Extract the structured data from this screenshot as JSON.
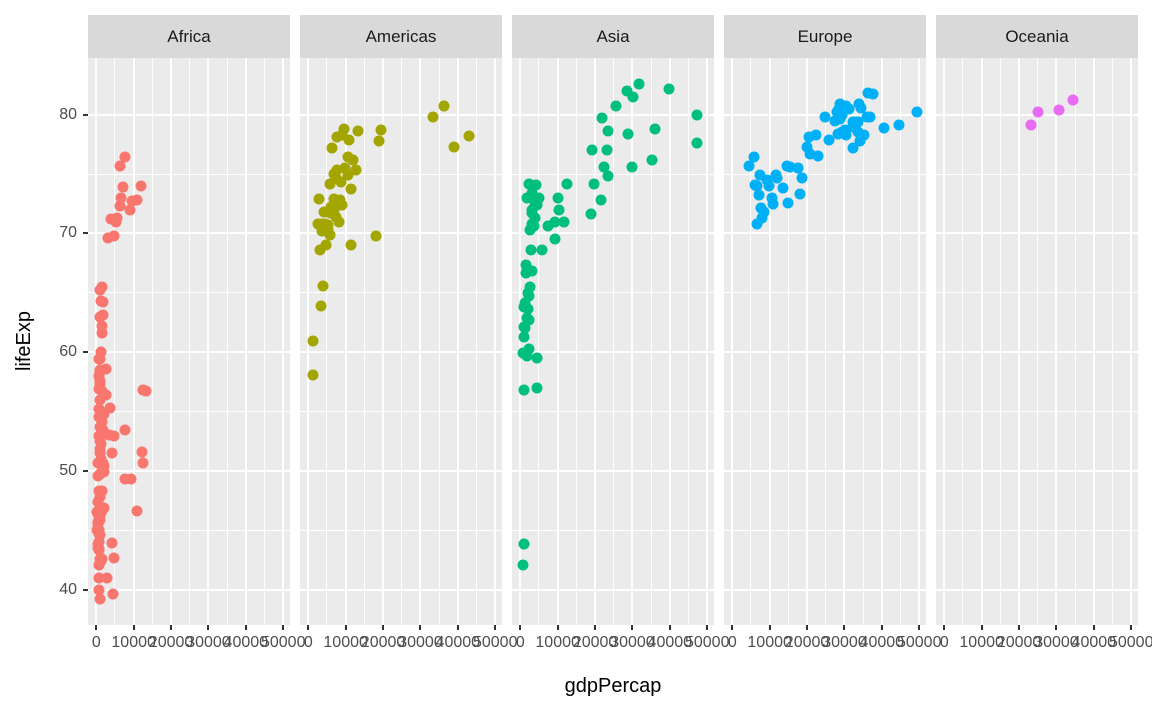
{
  "chart_data": {
    "type": "scatter",
    "title": "",
    "xlabel": "gdpPercap",
    "ylabel": "lifeExp",
    "legend": "none",
    "grid": "on",
    "xlim": [
      -2215,
      51813
    ],
    "ylim": [
      37.02,
      84.77
    ],
    "x_ticks": {
      "values": [
        0,
        10000,
        20000,
        30000,
        40000,
        50000
      ],
      "labels": [
        "0",
        "10000",
        "20000",
        "30000",
        "40000",
        "50000"
      ]
    },
    "y_ticks": {
      "values": [
        40,
        50,
        60,
        70,
        80
      ],
      "labels": [
        "40",
        "50",
        "60",
        "70",
        "80"
      ]
    },
    "x_minor": [
      5000,
      15000,
      25000,
      35000,
      45000
    ],
    "y_minor": [
      45,
      55,
      65,
      75
    ],
    "style": {
      "panel_bg": "#EBEBEB",
      "strip_bg": "#D9D9D9",
      "grid": "#FFFFFF",
      "axis_text": "#4D4D4D",
      "tick": "#333333",
      "title_text": "#000000",
      "strip_text": "#1A1A1A"
    },
    "facets": [
      {
        "label": "Africa",
        "color": "#F8766D",
        "points": [
          [
            6223,
            72.3
          ],
          [
            4797,
            42.7
          ],
          [
            1441,
            56.7
          ],
          [
            12570,
            50.7
          ],
          [
            1217,
            52.3
          ],
          [
            430,
            49.6
          ],
          [
            2042,
            50.4
          ],
          [
            706,
            44.7
          ],
          [
            1704,
            50.7
          ],
          [
            986,
            65.2
          ],
          [
            278,
            46.5
          ],
          [
            3633,
            55.3
          ],
          [
            1545,
            48.3
          ],
          [
            2082,
            54.8
          ],
          [
            5581,
            71.3
          ],
          [
            12154,
            51.6
          ],
          [
            641,
            58.0
          ],
          [
            691,
            52.9
          ],
          [
            13206,
            56.7
          ],
          [
            753,
            59.4
          ],
          [
            1328,
            60.0
          ],
          [
            943,
            56.0
          ],
          [
            579,
            46.4
          ],
          [
            1463,
            54.1
          ],
          [
            1569,
            42.6
          ],
          [
            415,
            45.7
          ],
          [
            12057,
            74.0
          ],
          [
            1045,
            59.4
          ],
          [
            759,
            48.3
          ],
          [
            1043,
            54.5
          ],
          [
            1803,
            64.2
          ],
          [
            10957,
            72.8
          ],
          [
            3820,
            71.2
          ],
          [
            824,
            42.1
          ],
          [
            4811,
            52.9
          ],
          [
            620,
            56.9
          ],
          [
            2014,
            46.9
          ],
          [
            7670,
            76.4
          ],
          [
            863,
            46.2
          ],
          [
            1598,
            65.5
          ],
          [
            1712,
            63.1
          ],
          [
            863,
            42.6
          ],
          [
            926,
            48.2
          ],
          [
            9270,
            49.3
          ],
          [
            2602,
            58.6
          ],
          [
            4513,
            39.6
          ],
          [
            1107,
            52.5
          ],
          [
            883,
            58.4
          ],
          [
            7093,
            73.9
          ],
          [
            1056,
            51.5
          ],
          [
            1271,
            42.4
          ],
          [
            470,
            43.5
          ],
          [
            5288,
            71.0
          ],
          [
            2773,
            41.0
          ],
          [
            1373,
            54.4
          ],
          [
            11004,
            46.6
          ],
          [
            1038,
            50.6
          ],
          [
            446,
            47.4
          ],
          [
            2140,
            49.9
          ],
          [
            739,
            43.3
          ],
          [
            1156,
            50.5
          ],
          [
            1076,
            63.0
          ],
          [
            241,
            45.0
          ],
          [
            3484,
            53.0
          ],
          [
            1649,
            46.8
          ],
          [
            1908,
            53.4
          ],
          [
            4755,
            69.8
          ],
          [
            7704,
            49.3
          ],
          [
            765,
            55.2
          ],
          [
            530,
            50.7
          ],
          [
            12522,
            56.8
          ],
          [
            661,
            58.0
          ],
          [
            1112,
            58.5
          ],
          [
            946,
            53.7
          ],
          [
            576,
            45.5
          ],
          [
            1288,
            51.0
          ],
          [
            1069,
            44.6
          ],
          [
            531,
            43.8
          ],
          [
            9535,
            72.7
          ],
          [
            895,
            57.3
          ],
          [
            665,
            45.0
          ],
          [
            951,
            51.8
          ],
          [
            1579,
            62.2
          ],
          [
            9022,
            72.0
          ],
          [
            3258,
            69.6
          ],
          [
            634,
            44.0
          ],
          [
            4072,
            51.5
          ],
          [
            601,
            54.5
          ],
          [
            1615,
            46.6
          ],
          [
            6316,
            75.7
          ],
          [
            786,
            43.4
          ],
          [
            1353,
            64.3
          ],
          [
            1520,
            61.6
          ],
          [
            830,
            41.0
          ],
          [
            882,
            45.9
          ],
          [
            7711,
            53.4
          ],
          [
            2497,
            56.4
          ],
          [
            4128,
            43.9
          ],
          [
            899,
            49.7
          ],
          [
            973,
            57.6
          ],
          [
            6508,
            73.0
          ],
          [
            928,
            47.8
          ],
          [
            1072,
            39.2
          ],
          [
            672,
            40.0
          ]
        ]
      },
      {
        "label": "Americas",
        "color": "#A3A500",
        "points": [
          [
            12779,
            75.3
          ],
          [
            3822,
            65.6
          ],
          [
            9066,
            72.4
          ],
          [
            36319,
            80.7
          ],
          [
            13172,
            78.6
          ],
          [
            7007,
            72.9
          ],
          [
            9645,
            78.8
          ],
          [
            8948,
            78.3
          ],
          [
            6025,
            72.2
          ],
          [
            6873,
            75.0
          ],
          [
            5728,
            71.9
          ],
          [
            5186,
            70.3
          ],
          [
            1202,
            60.9
          ],
          [
            3548,
            70.2
          ],
          [
            7321,
            72.6
          ],
          [
            11978,
            76.2
          ],
          [
            2749,
            72.9
          ],
          [
            9809,
            75.5
          ],
          [
            4173,
            71.8
          ],
          [
            7409,
            71.4
          ],
          [
            19329,
            78.7
          ],
          [
            18009,
            69.8
          ],
          [
            42952,
            78.2
          ],
          [
            10611,
            76.4
          ],
          [
            11416,
            73.7
          ],
          [
            8798,
            74.3
          ],
          [
            3413,
            63.9
          ],
          [
            8131,
            71.0
          ],
          [
            33329,
            79.8
          ],
          [
            10779,
            77.9
          ],
          [
            5755,
            71.7
          ],
          [
            7723,
            78.1
          ],
          [
            6341,
            77.2
          ],
          [
            4564,
            70.8
          ],
          [
            5773,
            74.2
          ],
          [
            5352,
            70.7
          ],
          [
            4858,
            69.0
          ],
          [
            1270,
            58.1
          ],
          [
            3100,
            68.6
          ],
          [
            6995,
            72.0
          ],
          [
            10742,
            74.9
          ],
          [
            2475,
            70.8
          ],
          [
            7356,
            74.7
          ],
          [
            3784,
            70.8
          ],
          [
            5909,
            69.9
          ],
          [
            18856,
            77.8
          ],
          [
            11461,
            69.0
          ],
          [
            39097,
            77.3
          ],
          [
            7727,
            75.3
          ],
          [
            8605,
            72.8
          ]
        ]
      },
      {
        "label": "Asia",
        "color": "#00BF7D",
        "points": [
          [
            975,
            43.8
          ],
          [
            29796,
            75.6
          ],
          [
            1391,
            64.1
          ],
          [
            1714,
            59.7
          ],
          [
            4959,
            73.0
          ],
          [
            39725,
            82.2
          ],
          [
            2452,
            64.7
          ],
          [
            3541,
            70.6
          ],
          [
            11606,
            71.0
          ],
          [
            4471,
            59.5
          ],
          [
            25523,
            80.7
          ],
          [
            31656,
            82.6
          ],
          [
            4519,
            72.5
          ],
          [
            1593,
            67.3
          ],
          [
            23348,
            78.6
          ],
          [
            47307,
            77.6
          ],
          [
            10461,
            72.0
          ],
          [
            12452,
            74.2
          ],
          [
            3096,
            66.8
          ],
          [
            944,
            62.1
          ],
          [
            1091,
            63.8
          ],
          [
            22316,
            75.6
          ],
          [
            2606,
            65.5
          ],
          [
            3190,
            71.7
          ],
          [
            21655,
            72.8
          ],
          [
            47143,
            80.0
          ],
          [
            3970,
            72.4
          ],
          [
            4185,
            74.1
          ],
          [
            28718,
            78.4
          ],
          [
            7458,
            70.6
          ],
          [
            2442,
            74.2
          ],
          [
            3025,
            73.4
          ],
          [
            2281,
            62.7
          ],
          [
            727,
            42.1
          ],
          [
            23404,
            74.8
          ],
          [
            1136,
            62.0
          ],
          [
            896,
            56.8
          ],
          [
            3119,
            72.0
          ],
          [
            30209,
            81.5
          ],
          [
            1747,
            62.9
          ],
          [
            2874,
            68.6
          ],
          [
            9241,
            69.5
          ],
          [
            4391,
            57.0
          ],
          [
            21906,
            79.7
          ],
          [
            28605,
            82.0
          ],
          [
            3845,
            71.3
          ],
          [
            1647,
            66.7
          ],
          [
            19234,
            77.0
          ],
          [
            35110,
            76.2
          ],
          [
            9314,
            71.0
          ],
          [
            10207,
            73.0
          ],
          [
            2141,
            65.0
          ],
          [
            611,
            59.9
          ],
          [
            1057,
            61.3
          ],
          [
            19775,
            74.2
          ],
          [
            2093,
            63.6
          ],
          [
            2651,
            70.3
          ],
          [
            19015,
            71.6
          ],
          [
            36023,
            78.8
          ],
          [
            3015,
            70.8
          ],
          [
            3656,
            73.1
          ],
          [
            23235,
            77.0
          ],
          [
            5913,
            68.6
          ],
          [
            1764,
            73.0
          ],
          [
            4515,
            72.4
          ],
          [
            2235,
            60.3
          ]
        ]
      },
      {
        "label": "Europe",
        "color": "#00B0F6",
        "points": [
          [
            5937,
            76.4
          ],
          [
            36126,
            79.8
          ],
          [
            33693,
            79.4
          ],
          [
            7446,
            74.9
          ],
          [
            10681,
            73.0
          ],
          [
            14619,
            75.7
          ],
          [
            22833,
            76.5
          ],
          [
            35278,
            78.3
          ],
          [
            33207,
            79.3
          ],
          [
            30470,
            80.7
          ],
          [
            32170,
            79.4
          ],
          [
            27538,
            79.5
          ],
          [
            18009,
            73.3
          ],
          [
            36181,
            81.8
          ],
          [
            40676,
            78.9
          ],
          [
            28570,
            80.5
          ],
          [
            9254,
            74.5
          ],
          [
            36798,
            79.8
          ],
          [
            49357,
            80.2
          ],
          [
            15390,
            75.6
          ],
          [
            20510,
            78.1
          ],
          [
            10808,
            72.5
          ],
          [
            9787,
            74.0
          ],
          [
            18678,
            74.7
          ],
          [
            25768,
            77.9
          ],
          [
            28821,
            80.9
          ],
          [
            33860,
            80.9
          ],
          [
            37506,
            81.7
          ],
          [
            8458,
            71.8
          ],
          [
            33203,
            79.4
          ],
          [
            4604,
            75.7
          ],
          [
            32418,
            79.0
          ],
          [
            30486,
            78.3
          ],
          [
            6019,
            74.1
          ],
          [
            7697,
            72.1
          ],
          [
            11628,
            74.9
          ],
          [
            17595,
            75.5
          ],
          [
            32167,
            77.2
          ],
          [
            28205,
            78.4
          ],
          [
            28926,
            79.6
          ],
          [
            30036,
            78.7
          ],
          [
            22514,
            78.3
          ],
          [
            14844,
            72.6
          ],
          [
            31163,
            80.5
          ],
          [
            34077,
            77.8
          ],
          [
            27968,
            80.2
          ],
          [
            6557,
            74.0
          ],
          [
            33725,
            78.5
          ],
          [
            44684,
            79.1
          ],
          [
            12002,
            74.7
          ],
          [
            19971,
            77.3
          ],
          [
            7885,
            71.3
          ],
          [
            7236,
            73.2
          ],
          [
            13639,
            73.8
          ],
          [
            20660,
            76.7
          ],
          [
            24835,
            79.8
          ],
          [
            29342,
            80.0
          ],
          [
            34481,
            80.6
          ],
          [
            6508,
            70.8
          ],
          [
            29479,
            78.5
          ]
        ]
      },
      {
        "label": "Oceania",
        "color": "#E76BF3",
        "points": [
          [
            34435,
            81.2
          ],
          [
            25185,
            80.2
          ],
          [
            30688,
            80.4
          ],
          [
            23190,
            79.1
          ]
        ]
      }
    ]
  }
}
